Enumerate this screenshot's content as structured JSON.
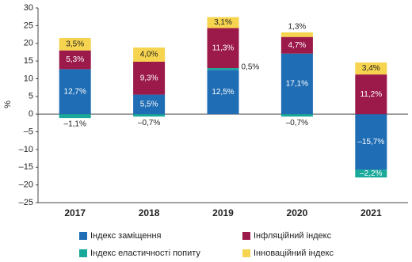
{
  "chart_data": {
    "type": "stacked_bar",
    "y_label": "%",
    "categories": [
      "2017",
      "2018",
      "2019",
      "2020",
      "2021"
    ],
    "series": [
      {
        "name": "Індекс заміщення",
        "color": "#1f6db4",
        "values": [
          12.7,
          5.5,
          12.5,
          17.1,
          -15.7
        ],
        "value_labels": [
          "12,7%",
          "5,5%",
          "12,5%",
          "17,1%",
          "–15,7%"
        ]
      },
      {
        "name": "Індекс еластичності попиту",
        "color": "#18a99a",
        "values": [
          -1.1,
          -0.7,
          0.5,
          -0.7,
          -2.2
        ],
        "value_labels": [
          "–1,1%",
          "–0,7%",
          "0,5%",
          "–0,7%",
          "–2,2%"
        ]
      },
      {
        "name": "Інфляційний індекс",
        "color": "#9b1a4a",
        "values": [
          5.3,
          9.3,
          11.3,
          4.7,
          11.2
        ],
        "value_labels": [
          "5,3%",
          "9,3%",
          "11,3%",
          "4,7%",
          "11,2%"
        ]
      },
      {
        "name": "Інноваційний індекс",
        "color": "#f6d44f",
        "values": [
          3.5,
          4.0,
          3.1,
          1.3,
          3.4
        ],
        "value_labels": [
          "3,5%",
          "4,0%",
          "3,1%",
          "1,3%",
          "3,4%"
        ]
      }
    ],
    "ylim": [
      -25,
      30
    ],
    "yticks": [
      {
        "value": -25,
        "label": "–25"
      },
      {
        "value": -20,
        "label": "–20"
      },
      {
        "value": -15,
        "label": "–15"
      },
      {
        "value": -10,
        "label": "–10"
      },
      {
        "value": -5,
        "label": "–5"
      },
      0,
      5,
      10,
      15,
      20,
      25,
      30
    ],
    "grid": false
  }
}
